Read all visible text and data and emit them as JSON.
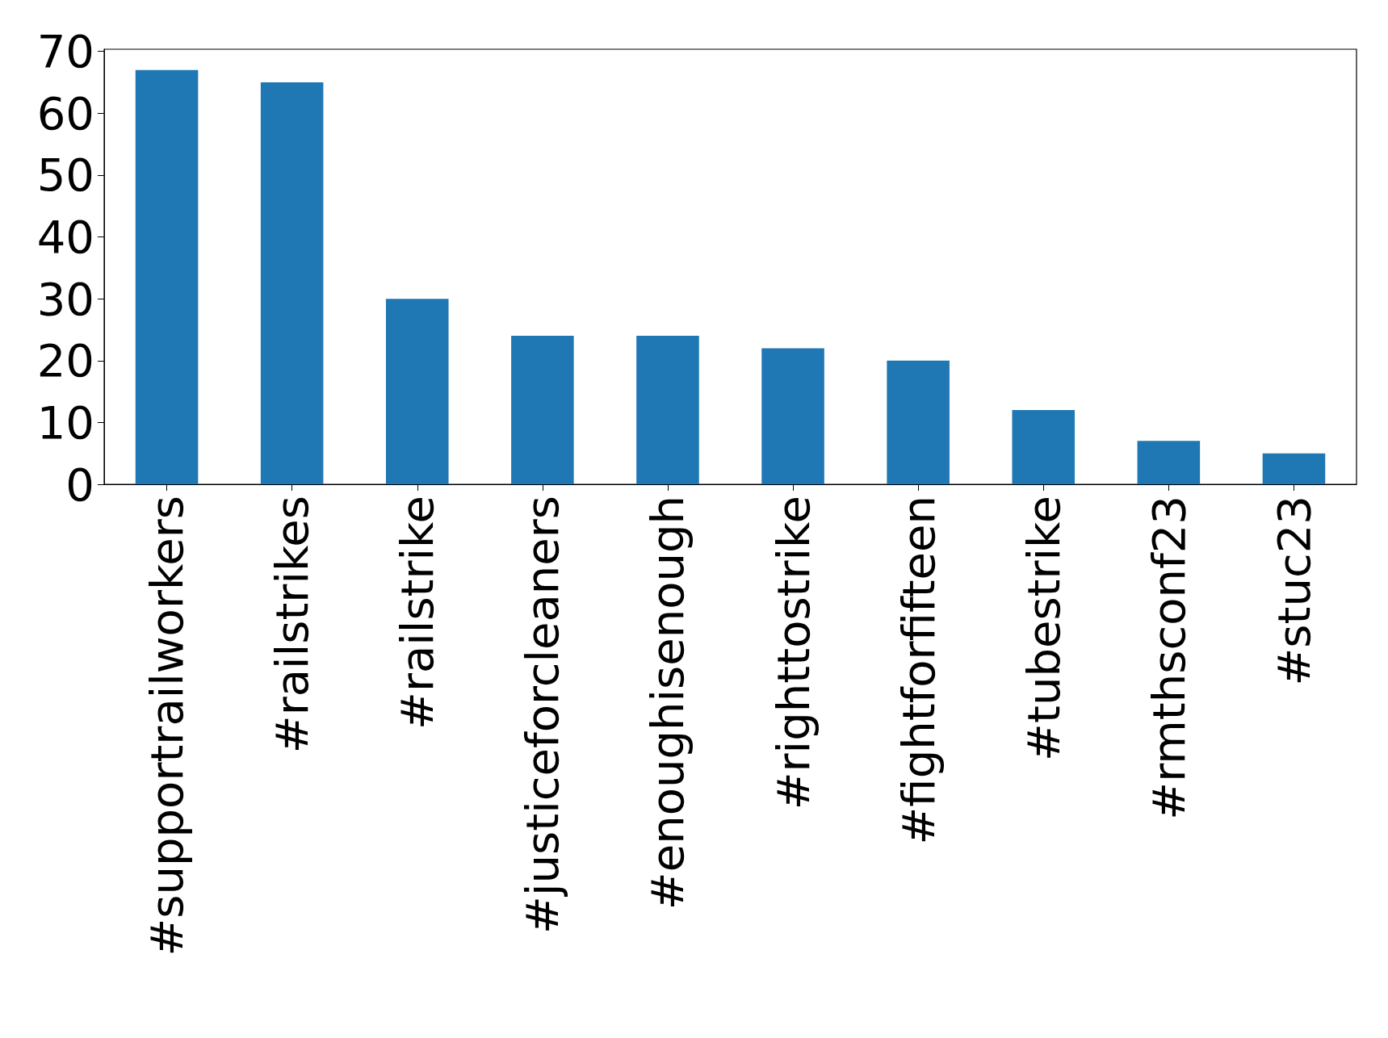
{
  "chart_data": {
    "type": "bar",
    "categories": [
      "#supportrailworkers",
      "#railstrikes",
      "#railstrike",
      "#justiceforcleaners",
      "#enoughisenough",
      "#righttostrike",
      "#fightforfifteen",
      "#tubestrike",
      "#rmthsconf23",
      "#stuc23"
    ],
    "values": [
      67,
      65,
      30,
      24,
      24,
      22,
      20,
      12,
      7,
      5
    ],
    "color": "#1f77b4",
    "ylim": [
      0,
      70.35
    ],
    "yticks": [
      0,
      10,
      20,
      30,
      40,
      50,
      60,
      70
    ]
  }
}
